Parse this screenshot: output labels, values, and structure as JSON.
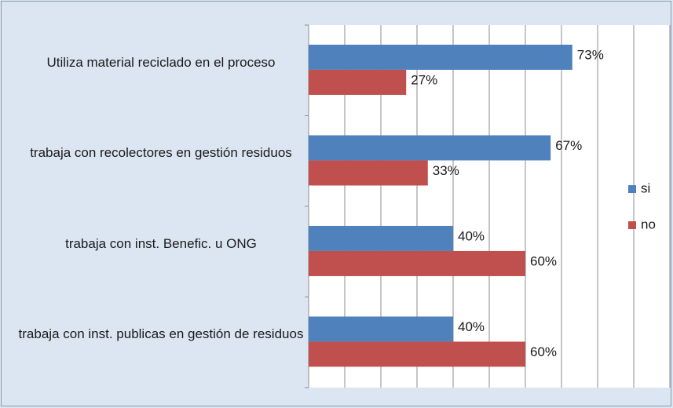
{
  "chart_data": {
    "type": "hbar",
    "categories": [
      "Utiliza material reciclado en  el proceso",
      "trabaja con recolectores en gestión residuos",
      "trabaja con  inst.  Benefic.  u ONG",
      "trabaja con inst. publicas en gestión de residuos"
    ],
    "series": [
      {
        "name": "si",
        "color": "#4f81bd",
        "values": [
          73,
          67,
          40,
          40
        ],
        "value_labels": [
          "73%",
          "67%",
          "40%",
          "40%"
        ]
      },
      {
        "name": "no",
        "color": "#c0504d",
        "values": [
          27,
          33,
          60,
          60
        ],
        "value_labels": [
          "27%",
          "33%",
          "60%",
          "60%"
        ]
      }
    ],
    "xlim": [
      0,
      100
    ],
    "xticks": [
      0,
      10,
      20,
      30,
      40,
      50,
      60,
      70,
      80,
      90,
      100
    ],
    "grid": true,
    "legend": "right"
  }
}
